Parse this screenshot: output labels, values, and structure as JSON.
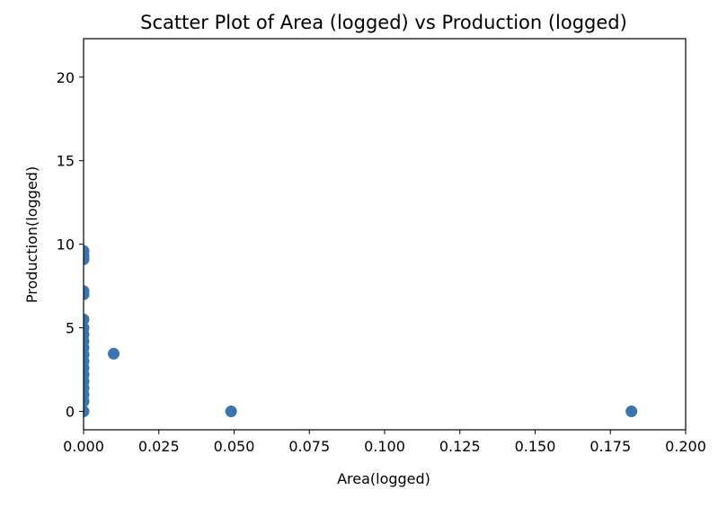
{
  "chart_data": {
    "type": "scatter",
    "title": "Scatter Plot of Area (logged) vs Production (logged)",
    "xlabel": "Area(logged)",
    "ylabel": "Production(logged)",
    "xlim": [
      0.0,
      0.2
    ],
    "ylim": [
      -1.1,
      22.3
    ],
    "xticks": [
      "0.000",
      "0.025",
      "0.050",
      "0.075",
      "0.100",
      "0.125",
      "0.150",
      "0.175",
      "0.200"
    ],
    "yticks": [
      "0",
      "5",
      "10",
      "15",
      "20"
    ],
    "grid": false,
    "marker_color": "#3a75b0",
    "points": [
      {
        "x": 0.0,
        "y": 0.0
      },
      {
        "x": 0.0,
        "y": 0.6
      },
      {
        "x": 0.0,
        "y": 1.0
      },
      {
        "x": 0.0,
        "y": 1.4
      },
      {
        "x": 0.0,
        "y": 1.8
      },
      {
        "x": 0.0,
        "y": 2.2
      },
      {
        "x": 0.0,
        "y": 2.6
      },
      {
        "x": 0.0,
        "y": 3.0
      },
      {
        "x": 0.0,
        "y": 3.4
      },
      {
        "x": 0.0,
        "y": 3.8
      },
      {
        "x": 0.0,
        "y": 4.2
      },
      {
        "x": 0.0,
        "y": 4.6
      },
      {
        "x": 0.0,
        "y": 5.0
      },
      {
        "x": 0.0,
        "y": 5.5
      },
      {
        "x": 0.0,
        "y": 7.0
      },
      {
        "x": 0.0,
        "y": 7.2
      },
      {
        "x": 0.0,
        "y": 9.1
      },
      {
        "x": 0.0,
        "y": 9.3
      },
      {
        "x": 0.0,
        "y": 9.6
      },
      {
        "x": 0.01,
        "y": 3.45
      },
      {
        "x": 0.049,
        "y": 0.0
      },
      {
        "x": 0.182,
        "y": 0.0
      }
    ]
  }
}
